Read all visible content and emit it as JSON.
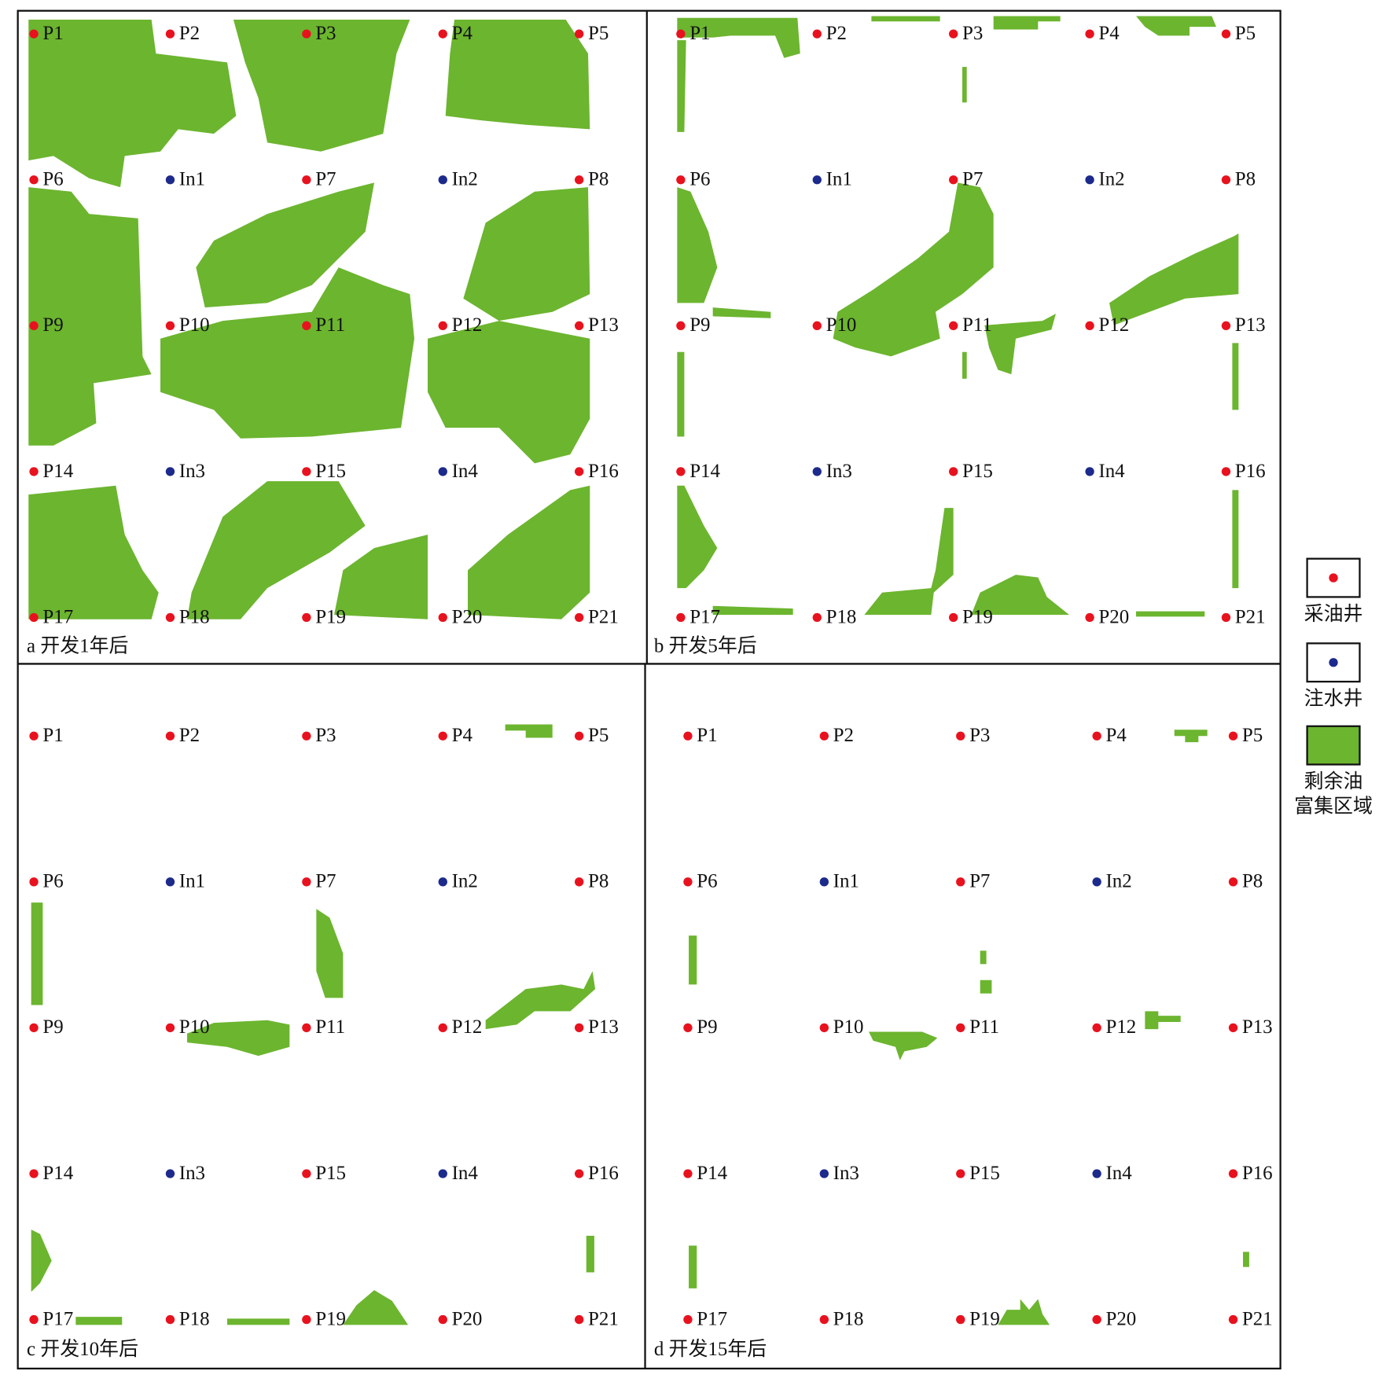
{
  "panels": [
    {
      "caption": "a 开发1年后"
    },
    {
      "caption": "b 开发5年后"
    },
    {
      "caption": "c 开发10年后"
    },
    {
      "caption": "d 开发15年后"
    }
  ],
  "wells": [
    {
      "name": "P1",
      "color": "#e8121e"
    },
    {
      "name": "P2",
      "color": "#e8121e"
    },
    {
      "name": "P3",
      "color": "#e8121e"
    },
    {
      "name": "P4",
      "color": "#e8121e"
    },
    {
      "name": "P5",
      "color": "#e8121e"
    },
    {
      "name": "P6",
      "color": "#e8121e"
    },
    {
      "name": "In1",
      "color": "#1c2a8c"
    },
    {
      "name": "P7",
      "color": "#e8121e"
    },
    {
      "name": "In2",
      "color": "#1c2a8c"
    },
    {
      "name": "P8",
      "color": "#e8121e"
    },
    {
      "name": "P9",
      "color": "#e8121e"
    },
    {
      "name": "P10",
      "color": "#e8121e"
    },
    {
      "name": "P11",
      "color": "#e8121e"
    },
    {
      "name": "P12",
      "color": "#e8121e"
    },
    {
      "name": "P13",
      "color": "#e8121e"
    },
    {
      "name": "P14",
      "color": "#e8121e"
    },
    {
      "name": "In3",
      "color": "#1c2a8c"
    },
    {
      "name": "P15",
      "color": "#e8121e"
    },
    {
      "name": "In4",
      "color": "#1c2a8c"
    },
    {
      "name": "P16",
      "color": "#e8121e"
    },
    {
      "name": "P17",
      "color": "#e8121e"
    },
    {
      "name": "P18",
      "color": "#e8121e"
    },
    {
      "name": "P19",
      "color": "#e8121e"
    },
    {
      "name": "P20",
      "color": "#e8121e"
    },
    {
      "name": "P21",
      "color": "#e8121e"
    }
  ],
  "legend": [
    {
      "lines": [
        "采油井"
      ],
      "color": "#e8121e"
    },
    {
      "lines": [
        "注水井"
      ],
      "color": "#1c2a8c"
    },
    {
      "lines": [
        "剩余油",
        "富集区域"
      ],
      "color": "#6cb52f"
    }
  ]
}
